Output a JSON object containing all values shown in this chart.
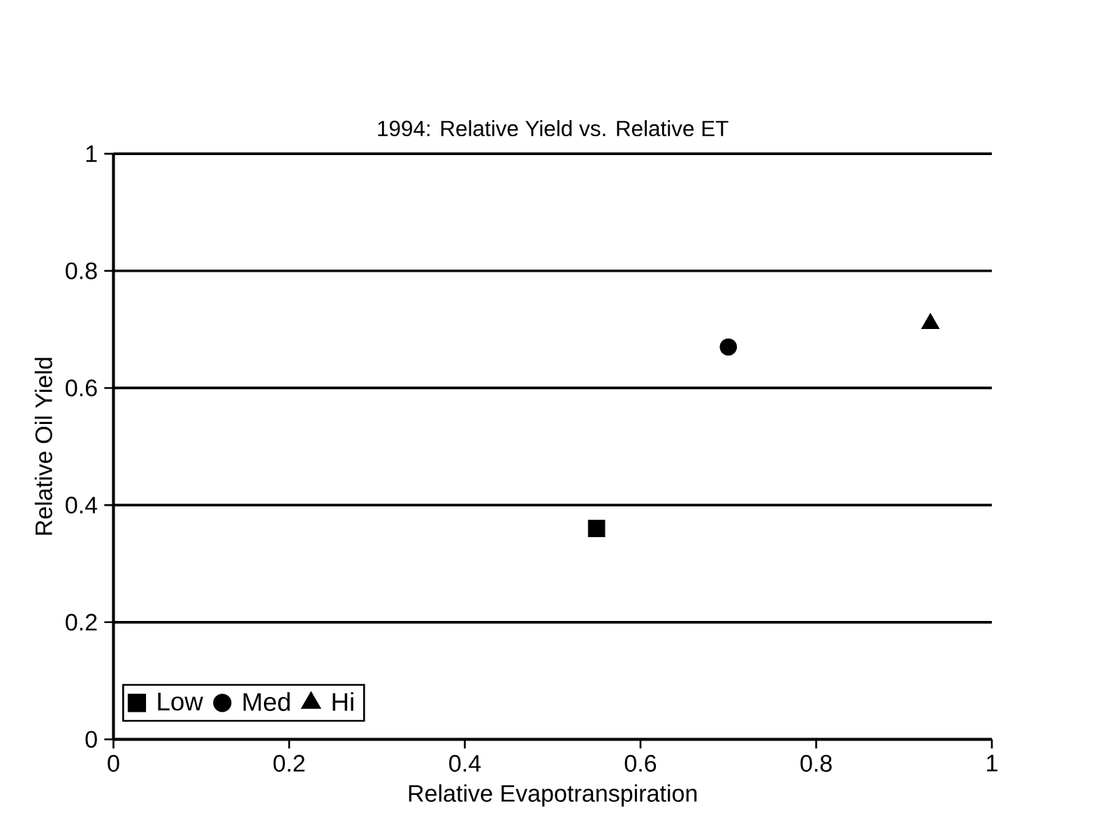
{
  "chart_data": {
    "type": "scatter",
    "title": "1994: Relative Yield vs. Relative ET",
    "xlabel": "Relative Evapotranspiration",
    "ylabel": "Relative Oil Yield",
    "series": [
      {
        "name": "Low",
        "color": "#000000",
        "marker": "square",
        "x": [
          0.55
        ],
        "values": [
          0.36
        ]
      },
      {
        "name": "Med",
        "color": "#000000",
        "marker": "circle",
        "x": [
          0.7
        ],
        "values": [
          0.67
        ]
      },
      {
        "name": "Hi",
        "color": "#000000",
        "marker": "triangle",
        "x": [
          0.93
        ],
        "values": [
          0.71
        ]
      }
    ],
    "xlim": [
      0,
      1
    ],
    "ylim": [
      0,
      1
    ],
    "xticks": [
      0,
      0.2,
      0.4,
      0.6,
      0.8,
      1
    ],
    "yticks": [
      0,
      0.2,
      0.4,
      0.6,
      0.8,
      1
    ],
    "grid": "y",
    "legend": "bottom left"
  }
}
